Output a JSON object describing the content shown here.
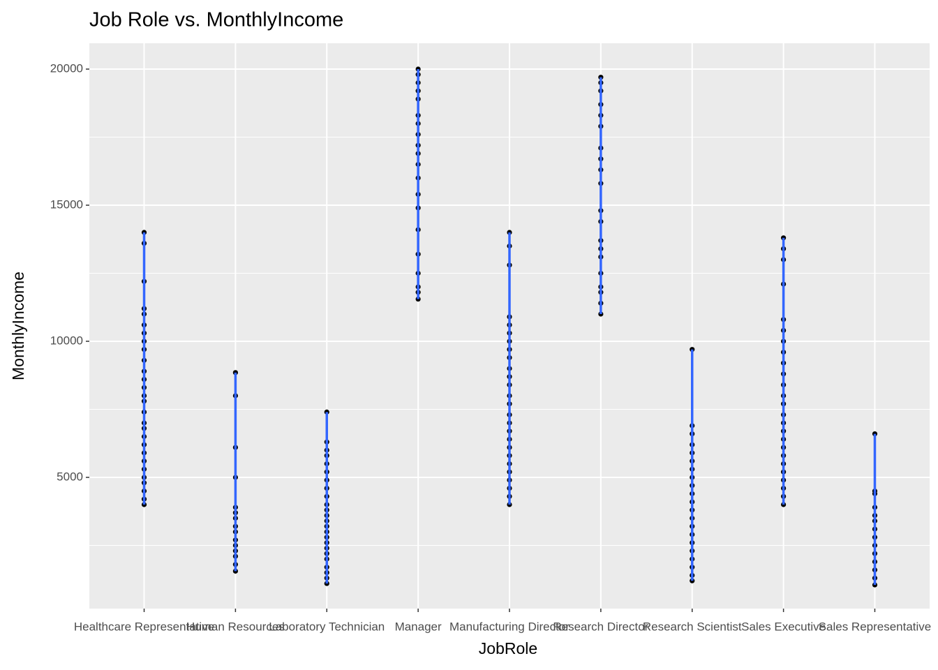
{
  "chart_data": {
    "type": "strip",
    "title": "Job Role vs. MonthlyIncome",
    "x_label": "JobRole",
    "y_label": "MonthlyIncome",
    "categories": [
      "Healthcare Representative",
      "Human Resources",
      "Laboratory Technician",
      "Manager",
      "Manufacturing Director",
      "Research Director",
      "Research Scientist",
      "Sales Executive",
      "Sales Representative"
    ],
    "values": [
      [
        4000,
        4200,
        4500,
        4800,
        5000,
        5300,
        5600,
        5900,
        6200,
        6500,
        6800,
        7000,
        7400,
        7800,
        8000,
        8300,
        8600,
        8900,
        9300,
        9700,
        10000,
        10300,
        10600,
        11000,
        11200,
        12200,
        13600,
        14000
      ],
      [
        1555,
        1800,
        2100,
        2300,
        2500,
        2700,
        3000,
        3200,
        3500,
        3700,
        3900,
        5000,
        6100,
        8000,
        8850
      ],
      [
        1100,
        1300,
        1500,
        1700,
        2000,
        2200,
        2400,
        2600,
        2800,
        3000,
        3200,
        3400,
        3600,
        3800,
        4000,
        4300,
        4600,
        4900,
        5200,
        5500,
        5800,
        6000,
        6300,
        7400
      ],
      [
        11550,
        11800,
        12000,
        12500,
        13200,
        14100,
        14900,
        15400,
        16000,
        16500,
        16900,
        17200,
        17600,
        18000,
        18300,
        18900,
        19200,
        19500,
        19800,
        20000
      ],
      [
        4000,
        4300,
        4600,
        4900,
        5200,
        5500,
        5800,
        6100,
        6400,
        6700,
        7000,
        7300,
        7700,
        8000,
        8400,
        8700,
        9000,
        9400,
        9700,
        10000,
        10300,
        10600,
        10900,
        12800,
        13500,
        14000
      ],
      [
        11000,
        11400,
        11800,
        12000,
        12500,
        13100,
        13400,
        13700,
        14400,
        14800,
        15800,
        16300,
        16700,
        17100,
        17900,
        18300,
        18700,
        19200,
        19500,
        19700
      ],
      [
        1200,
        1400,
        1700,
        2000,
        2300,
        2600,
        2900,
        3200,
        3500,
        3800,
        4100,
        4400,
        4700,
        5000,
        5300,
        5600,
        5900,
        6200,
        6600,
        6900,
        9700
      ],
      [
        4000,
        4300,
        4600,
        4900,
        5200,
        5500,
        5800,
        6100,
        6400,
        6700,
        7000,
        7300,
        7700,
        8000,
        8400,
        8800,
        9200,
        9600,
        10000,
        10400,
        10800,
        12100,
        13000,
        13400,
        13800
      ],
      [
        1050,
        1300,
        1600,
        1900,
        2200,
        2500,
        2800,
        3100,
        3400,
        3600,
        3900,
        4400,
        4500,
        6600
      ]
    ],
    "point_color": "#000000",
    "line_color": "#3366ff",
    "ylim": [
      179,
      20949
    ],
    "yticks": [
      5000,
      10000,
      15000,
      20000
    ],
    "minor_yticks": [
      2500,
      7500,
      12500,
      17500
    ],
    "grid": true
  }
}
